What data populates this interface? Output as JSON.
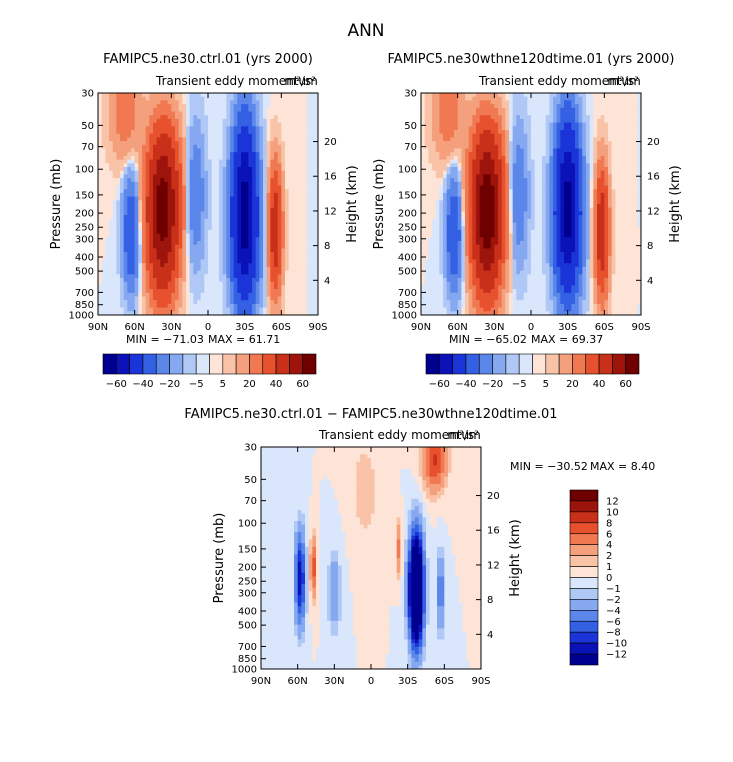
{
  "page_title": "ANN",
  "colors": {
    "neg": [
      "#000090",
      "#0b12b8",
      "#1a34d8",
      "#3460e4",
      "#5b86ea",
      "#86a8f0",
      "#b0c8f6",
      "#d9e6fb"
    ],
    "pos": [
      "#fde4d6",
      "#f9c3a8",
      "#f5a07c",
      "#f07952",
      "#e7512d",
      "#c8301a",
      "#9d140c",
      "#6e0000"
    ]
  },
  "chart_data": [
    {
      "id": "ctrl",
      "type": "heatmap",
      "title": "FAMIPC5.ne30.ctrl.01 (yrs 2000)",
      "subtitle": "Transient eddy momentum",
      "units": "m²/s²",
      "ylabel": "Pressure (mb)",
      "ylabel_right": "Height (km)",
      "x_ticks": [
        "90N",
        "60N",
        "30N",
        "0",
        "30S",
        "60S",
        "90S"
      ],
      "y_ticks": [
        "30",
        "50",
        "70",
        "100",
        "150",
        "200",
        "250",
        "300",
        "400",
        "500",
        "700",
        "850",
        "1000"
      ],
      "right_ticks": [
        "20",
        "16",
        "12",
        "8",
        "4"
      ],
      "min_text": "MIN = −71.03",
      "max_text": "MAX =   61.71",
      "legend_labels": [
        "−60",
        "−40",
        "−20",
        "−5",
        "5",
        "20",
        "40",
        "60"
      ],
      "features": [
        {
          "lat": 37,
          "p": 220,
          "amp": 62,
          "wx": 11,
          "wy": 1.05
        },
        {
          "lat": 36,
          "p": 120,
          "amp": 18,
          "wx": 12,
          "wy": 0.9
        },
        {
          "lat": -55,
          "p": 260,
          "amp": 30,
          "wx": 5,
          "wy": 0.9
        },
        {
          "lat": -30,
          "p": 230,
          "amp": -71,
          "wx": 9.5,
          "wy": 1.1
        },
        {
          "lat": -30,
          "p": 80,
          "amp": -14,
          "wx": 8,
          "wy": 0.9
        },
        {
          "lat": 63,
          "p": 280,
          "amp": -20,
          "wx": 6,
          "wy": 0.8
        },
        {
          "lat": 10,
          "p": 150,
          "amp": -10,
          "wx": 7,
          "wy": 1.0
        },
        {
          "lat": 68,
          "p": 40,
          "amp": 8,
          "wx": 12,
          "wy": 0.7
        }
      ]
    },
    {
      "id": "exp",
      "type": "heatmap",
      "title": "FAMIPC5.ne30wthne120dtime.01 (yrs 2000)",
      "subtitle": "Transient eddy momentum",
      "units": "m²/s²",
      "ylabel": "Pressure (mb)",
      "ylabel_right": "Height (km)",
      "x_ticks": [
        "90N",
        "60N",
        "30N",
        "0",
        "30S",
        "60S",
        "90S"
      ],
      "y_ticks": [
        "30",
        "50",
        "70",
        "100",
        "150",
        "200",
        "250",
        "300",
        "400",
        "500",
        "700",
        "850",
        "1000"
      ],
      "right_ticks": [
        "20",
        "16",
        "12",
        "8",
        "4"
      ],
      "min_text": "MIN = −65.02",
      "max_text": "MAX =   69.37",
      "legend_labels": [
        "−60",
        "−40",
        "−20",
        "−5",
        "5",
        "20",
        "40",
        "60"
      ],
      "features": [
        {
          "lat": 36,
          "p": 220,
          "amp": 69,
          "wx": 11,
          "wy": 1.05
        },
        {
          "lat": 36,
          "p": 120,
          "amp": 18,
          "wx": 12,
          "wy": 0.9
        },
        {
          "lat": -58,
          "p": 270,
          "amp": 32,
          "wx": 5,
          "wy": 0.9
        },
        {
          "lat": -30,
          "p": 210,
          "amp": -65,
          "wx": 9.5,
          "wy": 1.1
        },
        {
          "lat": -30,
          "p": 80,
          "amp": -14,
          "wx": 8,
          "wy": 0.9
        },
        {
          "lat": 63,
          "p": 280,
          "amp": -20,
          "wx": 6,
          "wy": 0.8
        },
        {
          "lat": 10,
          "p": 150,
          "amp": -10,
          "wx": 7,
          "wy": 1.0
        },
        {
          "lat": 68,
          "p": 40,
          "amp": 8,
          "wx": 12,
          "wy": 0.7
        }
      ]
    },
    {
      "id": "diff",
      "type": "heatmap",
      "title": "FAMIPC5.ne30.ctrl.01 − FAMIPC5.ne30wthne120dtime.01",
      "subtitle": "Transient eddy momentum",
      "units": "m²/s²",
      "ylabel": "Pressure (mb)",
      "ylabel_right": "Height (km)",
      "x_ticks": [
        "90N",
        "60N",
        "30N",
        "0",
        "30S",
        "60S",
        "90S"
      ],
      "y_ticks": [
        "30",
        "50",
        "70",
        "100",
        "150",
        "200",
        "250",
        "300",
        "400",
        "500",
        "700",
        "850",
        "1000"
      ],
      "right_ticks": [
        "20",
        "16",
        "12",
        "8",
        "4"
      ],
      "min_text": "MIN = −30.52",
      "max_text": "MAX =    8.40",
      "legend_labels": [
        "12",
        "10",
        "8",
        "6",
        "4",
        "2",
        "1",
        "0",
        "−1",
        "−2",
        "−4",
        "−6",
        "−8",
        "−10",
        "−12"
      ],
      "features": [
        {
          "lat": -37,
          "p": 285,
          "amp": -30.5,
          "wx": 5.5,
          "wy": 0.8
        },
        {
          "lat": 58,
          "p": 240,
          "amp": -12,
          "wx": 4,
          "wy": 0.7
        },
        {
          "lat": 47,
          "p": 200,
          "amp": 7,
          "wx": 2.5,
          "wy": 0.45
        },
        {
          "lat": -52,
          "p": 37,
          "amp": 8.4,
          "wx": 9,
          "wy": 0.45
        },
        {
          "lat": -23,
          "p": 150,
          "amp": 5,
          "wx": 2,
          "wy": 0.4
        },
        {
          "lat": 30,
          "p": 300,
          "amp": -4,
          "wx": 5,
          "wy": 0.6
        },
        {
          "lat": -57,
          "p": 300,
          "amp": -6,
          "wx": 3,
          "wy": 0.6
        },
        {
          "lat": 5,
          "p": 60,
          "amp": 2,
          "wx": 10,
          "wy": 0.7
        }
      ]
    }
  ]
}
